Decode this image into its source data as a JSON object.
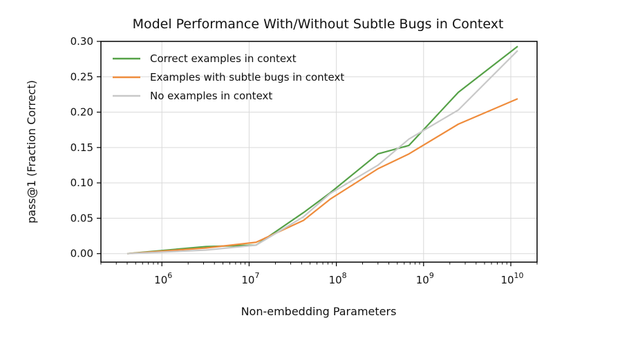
{
  "chart_data": {
    "type": "line",
    "title": "Model Performance With/Without Subtle Bugs in Context",
    "xlabel": "Non-embedding Parameters",
    "ylabel": "pass@1 (Fraction Correct)",
    "xscale": "log",
    "xlim": [
      200000,
      20000000000
    ],
    "ylim": [
      -0.012,
      0.3
    ],
    "grid": true,
    "legend_position": "top-left",
    "yticks": [
      "0.00",
      "0.05",
      "0.10",
      "0.15",
      "0.20",
      "0.25",
      "0.30"
    ],
    "xticks": [
      {
        "base": "10",
        "exp": "6"
      },
      {
        "base": "10",
        "exp": "7"
      },
      {
        "base": "10",
        "exp": "8"
      },
      {
        "base": "10",
        "exp": "9"
      },
      {
        "base": "10",
        "exp": "10"
      }
    ],
    "series": [
      {
        "name": "Correct examples in context",
        "color": "#55a147",
        "x": [
          400000,
          3200000,
          12000000,
          42000000,
          85000000,
          300000000,
          680000000,
          2500000000,
          12000000000
        ],
        "y": [
          0.0,
          0.01,
          0.012,
          0.058,
          0.086,
          0.141,
          0.153,
          0.228,
          0.293
        ]
      },
      {
        "name": "Examples with subtle bugs in context",
        "color": "#ef8c3c",
        "x": [
          400000,
          3200000,
          12000000,
          42000000,
          85000000,
          300000000,
          680000000,
          2500000000,
          12000000000
        ],
        "y": [
          0.0,
          0.008,
          0.016,
          0.047,
          0.077,
          0.12,
          0.141,
          0.183,
          0.219
        ]
      },
      {
        "name": "No examples in context",
        "color": "#c8c8c8",
        "x": [
          400000,
          3200000,
          12000000,
          42000000,
          85000000,
          300000000,
          680000000,
          2500000000,
          12000000000
        ],
        "y": [
          0.0,
          0.005,
          0.012,
          0.052,
          0.085,
          0.125,
          0.162,
          0.203,
          0.287
        ]
      }
    ]
  }
}
